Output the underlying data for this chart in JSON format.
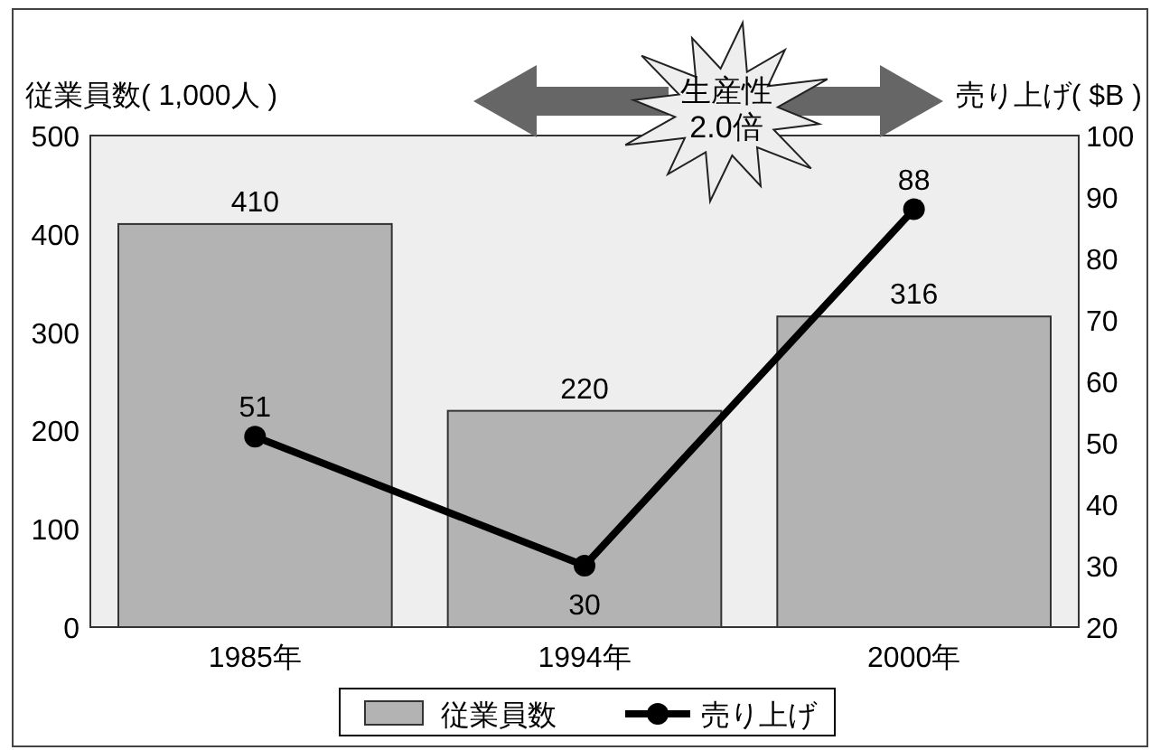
{
  "chart_data": {
    "type": "bar",
    "categories": [
      "1985年",
      "1994年",
      "2000年"
    ],
    "series": [
      {
        "name": "従業員数",
        "color": "#b3b3b3",
        "values": [
          410,
          220,
          316
        ]
      },
      {
        "name": "売り上げ",
        "type": "line",
        "axis": "y2",
        "color": "#000000",
        "values": [
          51,
          30,
          88
        ]
      }
    ],
    "ylabel": "従業員数( 1,000人 )",
    "y2label": "売り上げ( $B )",
    "ylim": [
      0,
      500
    ],
    "yticks": [
      0,
      100,
      200,
      300,
      400,
      500
    ],
    "y2lim": [
      20,
      100
    ],
    "y2ticks": [
      20,
      30,
      40,
      50,
      60,
      70,
      80,
      90,
      100
    ],
    "annotations": [
      "生産性\n2.0倍"
    ],
    "data_labels": true,
    "legend": "bottom",
    "marker": "circle",
    "line_style": "solid",
    "grid": false
  }
}
